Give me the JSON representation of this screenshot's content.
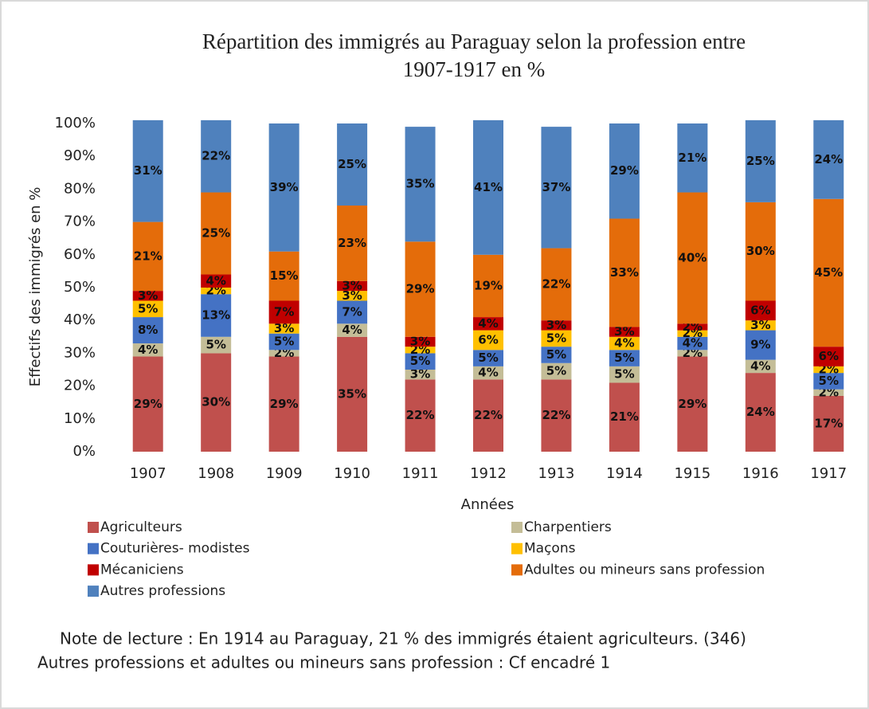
{
  "chart_data": {
    "type": "stacked_bar",
    "title": [
      "Répartition des immigrés  au Paraguay selon la profession entre",
      "1907-1917 en %"
    ],
    "x_label": "Années",
    "y_label": "Effectifs des immigrés en %",
    "categories": [
      "1907",
      "1908",
      "1909",
      "1910",
      "1911",
      "1912",
      "1913",
      "1914",
      "1915",
      "1916",
      "1917"
    ],
    "series": [
      {
        "name": "Agriculteurs",
        "color": "#c0504d",
        "values": [
          29,
          30,
          29,
          35,
          22,
          22,
          22,
          21,
          29,
          24,
          17
        ],
        "value_labels": [
          "29%",
          "30%",
          "29%",
          "35%",
          "22%",
          "22%",
          "22%",
          "21%",
          "29%",
          "24%",
          "17%"
        ]
      },
      {
        "name": "Charpentiers",
        "color": "#c4bd97",
        "values": [
          4,
          5,
          2,
          4,
          3,
          4,
          5,
          5,
          2,
          4,
          2
        ],
        "value_labels": [
          "4%",
          "5%",
          "2%",
          "4%",
          "3%",
          "4%",
          "5%",
          "5%",
          "2%",
          "4%",
          "2%"
        ]
      },
      {
        "name": "Couturières- modistes",
        "color": "#4472c4",
        "values": [
          8,
          13,
          5,
          7,
          5,
          5,
          5,
          5,
          4,
          9,
          5
        ],
        "value_labels": [
          "8%",
          "13%",
          "5%",
          "7%",
          "5%",
          "5%",
          "5%",
          "5%",
          "4%",
          "9%",
          "5%"
        ]
      },
      {
        "name": "Maçons",
        "color": "#ffc000",
        "values": [
          5,
          2,
          3,
          3,
          2,
          6,
          5,
          4,
          2,
          3,
          2
        ],
        "value_labels": [
          "5%",
          "2%",
          "3%",
          "3%",
          "2%",
          "6%",
          "5%",
          "4%",
          "2%",
          "3%",
          "2%"
        ]
      },
      {
        "name": "Mécaniciens",
        "color": "#c00000",
        "values": [
          3,
          4,
          7,
          3,
          3,
          4,
          3,
          3,
          2,
          6,
          6
        ],
        "value_labels": [
          "3%",
          "4%",
          "7%",
          "3%",
          "3%",
          "4%",
          "3%",
          "3%",
          "2%",
          "6%",
          "6%"
        ]
      },
      {
        "name": "Adultes ou mineurs sans profession",
        "color": "#e46c0a",
        "values": [
          21,
          25,
          15,
          23,
          29,
          19,
          22,
          33,
          40,
          30,
          45
        ],
        "value_labels": [
          "21%",
          "25%",
          "15%",
          "23%",
          "29%",
          "19%",
          "22%",
          "33%",
          "40%",
          "30%",
          "45%"
        ]
      },
      {
        "name": "Autres professions",
        "color": "#4f81bd",
        "values": [
          31,
          22,
          39,
          25,
          35,
          41,
          37,
          29,
          21,
          25,
          24
        ],
        "value_labels": [
          "31%",
          "22%",
          "39%",
          "25%",
          "35%",
          "41%",
          "37%",
          "29%",
          "21%",
          "25%",
          "24%"
        ]
      }
    ],
    "ylim": [
      0,
      100
    ],
    "yticks": [
      {
        "value": 0,
        "label": "0%"
      },
      {
        "value": 10,
        "label": "10%"
      },
      {
        "value": 20,
        "label": "20%"
      },
      {
        "value": 30,
        "label": "30%"
      },
      {
        "value": 40,
        "label": "40%"
      },
      {
        "value": 50,
        "label": "50%"
      },
      {
        "value": 60,
        "label": "60%"
      },
      {
        "value": 70,
        "label": "70%"
      },
      {
        "value": 80,
        "label": "80%"
      },
      {
        "value": 90,
        "label": "90%"
      },
      {
        "value": 100,
        "label": "100%"
      }
    ],
    "legend": "bottom",
    "notes": [
      "Note de lecture : En 1914 au Paraguay, 21 % des immigrés étaient agriculteurs. (346)",
      "Autres professions et adultes ou mineurs sans profession : Cf encadré 1"
    ]
  }
}
